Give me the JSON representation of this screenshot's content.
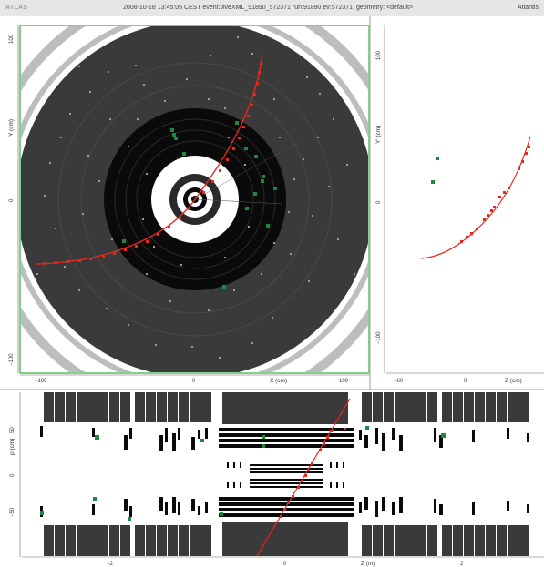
{
  "header": {
    "brand": "ATLAS",
    "event_info": "2008-10-18 13:45:05 CEST event:JiveXML_91890_572371 run:91890 ev:572371  geometry: <default>",
    "app_name": "Atlantis"
  },
  "xy_view": {
    "x_axis_label": "X (cm)",
    "y_axis_label": "Y (cm)",
    "x_ticks": [
      "−100",
      "0",
      "100"
    ],
    "y_ticks": [
      "100",
      "0",
      "−100"
    ]
  },
  "yz_view": {
    "x_axis_label": "Z (cm)",
    "y_axis_label": "Y' (cm)",
    "x_ticks": [
      "−60",
      "0"
    ],
    "y_ticks": [
      "100",
      "0",
      "−100"
    ]
  },
  "rz_view": {
    "x_axis_label": "Z (m)",
    "y_axis_label": "ρ (cm)",
    "x_ticks": [
      "−2",
      "0",
      "2"
    ],
    "y_ticks": [
      "50",
      "0",
      "−50"
    ]
  },
  "colors": {
    "track": "#e8281e",
    "hit": "#1a8a3e",
    "detector_dark": "#3a3a3a",
    "detector_black": "#0a0a0a",
    "ring_gray": "#bdbdbd",
    "corner_green": "#7fd18a"
  }
}
